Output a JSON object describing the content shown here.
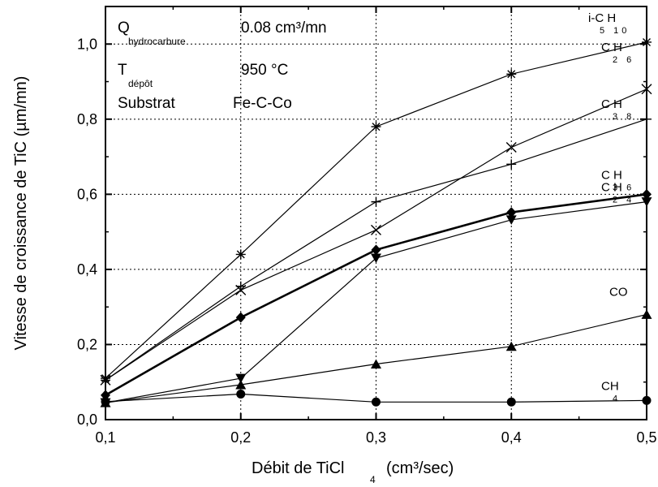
{
  "chart_data": {
    "type": "line",
    "xlabel": "Débit de TiCl",
    "xlabel_sub": "4",
    "xlabel_unit": "(cm³/sec)",
    "ylabel": "Vitesse de croissance de TiC (µm/mn)",
    "xlim": [
      0.1,
      0.5
    ],
    "ylim": [
      0.0,
      1.1
    ],
    "x_ticks": [
      0.1,
      0.2,
      0.3,
      0.4,
      0.5
    ],
    "x_tick_labels": [
      "0,1",
      "0,2",
      "0,3",
      "0,4",
      "0,5"
    ],
    "y_ticks": [
      0.0,
      0.2,
      0.4,
      0.6,
      0.8,
      1.0
    ],
    "y_tick_labels": [
      "0,0",
      "0,2",
      "0,4",
      "0,6",
      "0,8",
      "1,0"
    ],
    "grid": true,
    "x": [
      0.1,
      0.2,
      0.3,
      0.4,
      0.5
    ],
    "series": [
      {
        "name": "i-C5H10",
        "label_main": "i-C H",
        "label_sub": "5 10",
        "values": [
          0.11,
          0.44,
          0.78,
          0.92,
          1.005
        ],
        "marker": "asterisk",
        "bold": false
      },
      {
        "name": "C2H6",
        "label_main": "C H",
        "label_sub": "2 6",
        "values": [
          0.105,
          0.345,
          0.505,
          0.725,
          0.88
        ],
        "marker": "x",
        "bold": false
      },
      {
        "name": "C3H8",
        "label_main": "C H",
        "label_sub": "3 8",
        "values": [
          0.105,
          0.355,
          0.58,
          0.68,
          0.8
        ],
        "marker": "plus",
        "bold": false
      },
      {
        "name": "C3H6",
        "label_main": "C H",
        "label_sub": "3 6",
        "values": [
          0.065,
          0.272,
          0.452,
          0.552,
          0.6
        ],
        "marker": "diamond",
        "bold": true
      },
      {
        "name": "C2H4",
        "label_main": "C H",
        "label_sub": "2 4",
        "values": [
          0.045,
          0.11,
          0.43,
          0.532,
          0.58
        ],
        "marker": "triangle-down",
        "bold": false
      },
      {
        "name": "CO",
        "label_main": "CO",
        "label_sub": "",
        "values": [
          0.045,
          0.093,
          0.148,
          0.195,
          0.28
        ],
        "marker": "triangle-up",
        "bold": false
      },
      {
        "name": "CH4",
        "label_main": "CH",
        "label_sub": "4",
        "values": [
          0.048,
          0.068,
          0.047,
          0.047,
          0.051
        ],
        "marker": "circle",
        "bold": false
      }
    ],
    "annotations": [
      {
        "label": "Q",
        "label_sub": "hydrocarbure",
        "value": "0.08 cm³/mn"
      },
      {
        "label": "T",
        "label_sub": "dépôt",
        "value": "950 °C"
      },
      {
        "label": "Substrat",
        "label_sub": "",
        "value": "Fe-C-Co"
      }
    ]
  }
}
